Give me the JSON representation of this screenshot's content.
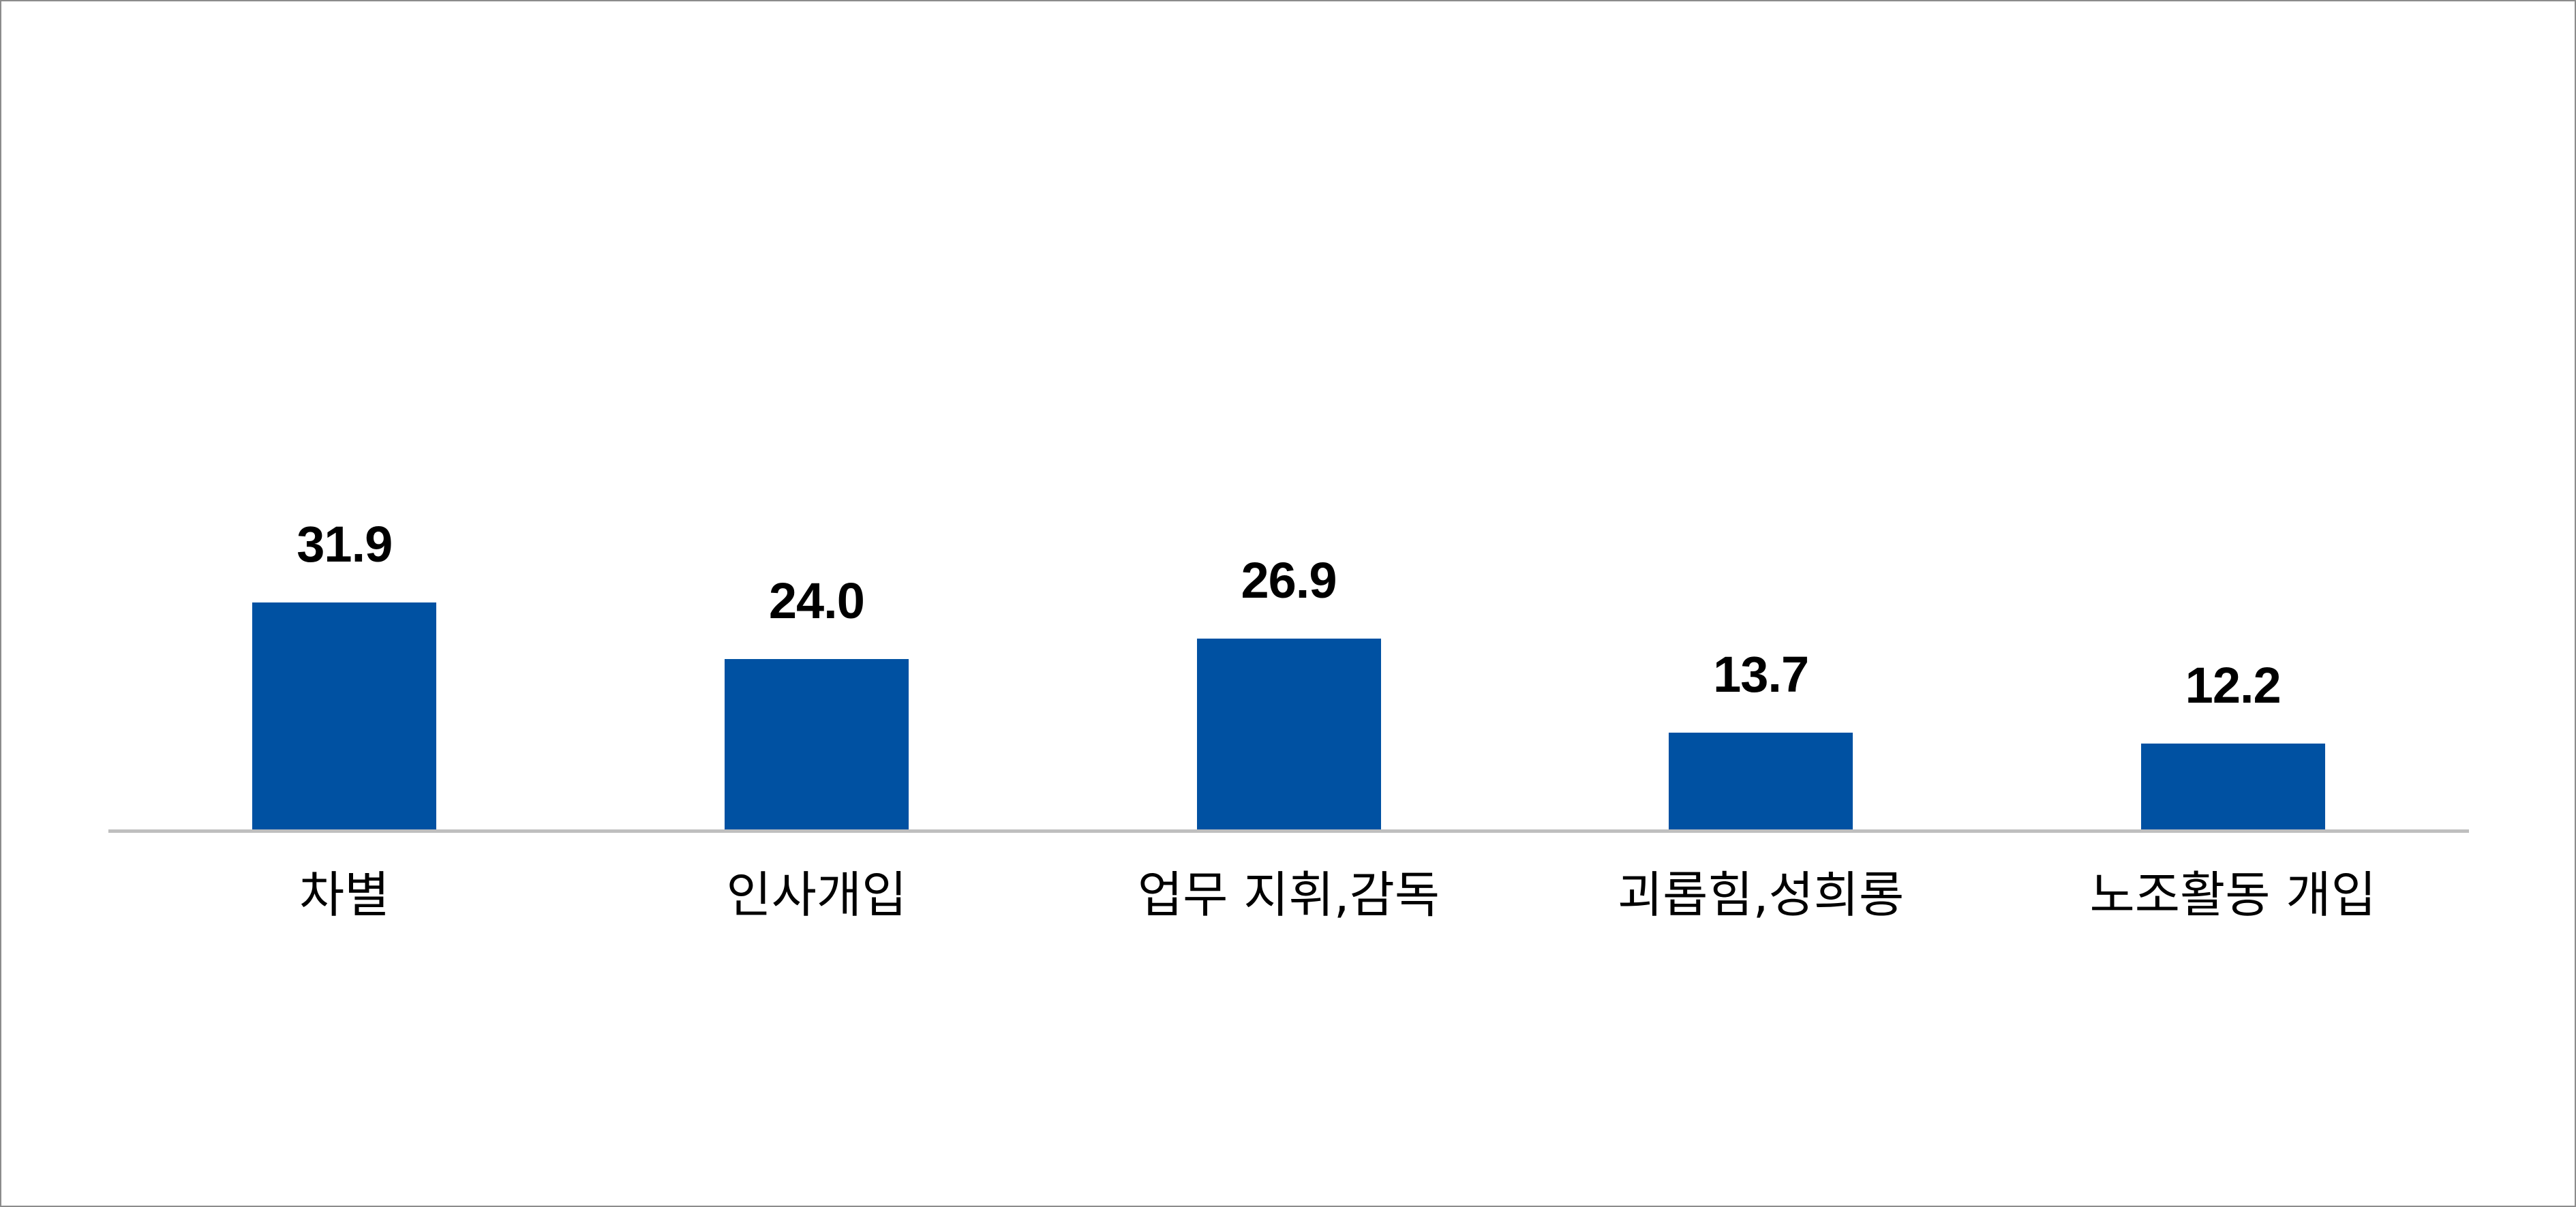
{
  "chart_data": {
    "type": "bar",
    "title": "",
    "xlabel": "",
    "ylabel": "",
    "categories": [
      "차별",
      "인사개입",
      "업무 지휘,감독",
      "괴롭힘,성희롱",
      "노조활동 개입"
    ],
    "values": [
      31.9,
      24.0,
      26.9,
      13.7,
      12.2
    ],
    "value_labels": [
      "31.9",
      "24.0",
      "26.9",
      "13.7",
      "12.2"
    ],
    "ylim": [
      0,
      80
    ],
    "grid": false,
    "legend": null,
    "y_axis_visible": false,
    "bar_color": "#0051a2",
    "axis_color": "#bfbfbf"
  }
}
